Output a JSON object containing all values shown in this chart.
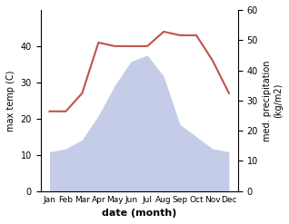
{
  "months": [
    "Jan",
    "Feb",
    "Mar",
    "Apr",
    "May",
    "Jun",
    "Jul",
    "Aug",
    "Sep",
    "Oct",
    "Nov",
    "Dec"
  ],
  "temp": [
    22,
    22,
    27,
    41,
    40,
    40,
    40,
    44,
    43,
    43,
    36,
    27
  ],
  "precip": [
    13,
    14,
    17,
    25,
    35,
    43,
    45,
    38,
    22,
    18,
    14,
    13
  ],
  "temp_color": "#c0524a",
  "precip_fill_color": "#c5cce8",
  "ylabel_left": "max temp (C)",
  "ylabel_right": "med. precipitation\n(kg/m2)",
  "xlabel": "date (month)",
  "ylim_left": [
    0,
    50
  ],
  "ylim_right": [
    0,
    60
  ],
  "yticks_left": [
    0,
    10,
    20,
    30,
    40
  ],
  "yticks_right": [
    0,
    10,
    20,
    30,
    40,
    50,
    60
  ],
  "bg_color": "#ffffff"
}
